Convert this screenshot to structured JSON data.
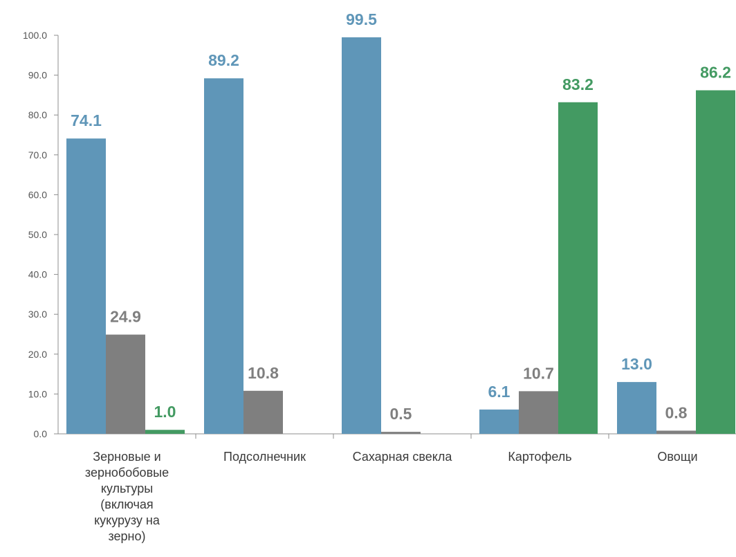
{
  "chart_data": {
    "type": "bar",
    "title": "",
    "xlabel": "",
    "ylabel": "",
    "ylim": [
      0,
      100
    ],
    "yticks": [
      "0.0",
      "10.0",
      "20.0",
      "30.0",
      "40.0",
      "50.0",
      "60.0",
      "70.0",
      "80.0",
      "90.0",
      "100.0"
    ],
    "categories": [
      "Зерновые и зернобобовые культуры (включая кукурузу на зерно)",
      "Подсолнечник",
      "Сахарная свекла",
      "Картофель",
      "Овощи"
    ],
    "category_lines": [
      [
        "Зерновые и",
        "зернобобовые",
        "культуры",
        "(включая",
        "кукурузу на",
        "зерно)"
      ],
      [
        "Подсолнечник"
      ],
      [
        "Сахарная свекла"
      ],
      [
        "Картофель"
      ],
      [
        "Овощи"
      ]
    ],
    "series": [
      {
        "color": "#5f96b8",
        "values": [
          74.1,
          89.2,
          99.5,
          6.1,
          13.0
        ],
        "labels": [
          "74.1",
          "89.2",
          "99.5",
          "6.1",
          "13.0"
        ]
      },
      {
        "color": "#7f7f7f",
        "values": [
          24.9,
          10.8,
          0.5,
          10.7,
          0.8
        ],
        "labels": [
          "24.9",
          "10.8",
          "0.5",
          "10.7",
          "0.8"
        ]
      },
      {
        "color": "#439a62",
        "values": [
          1.0,
          null,
          null,
          83.2,
          86.2
        ],
        "labels": [
          "1.0",
          null,
          null,
          "83.2",
          "86.2"
        ]
      }
    ],
    "grid": false,
    "legend": "none"
  }
}
